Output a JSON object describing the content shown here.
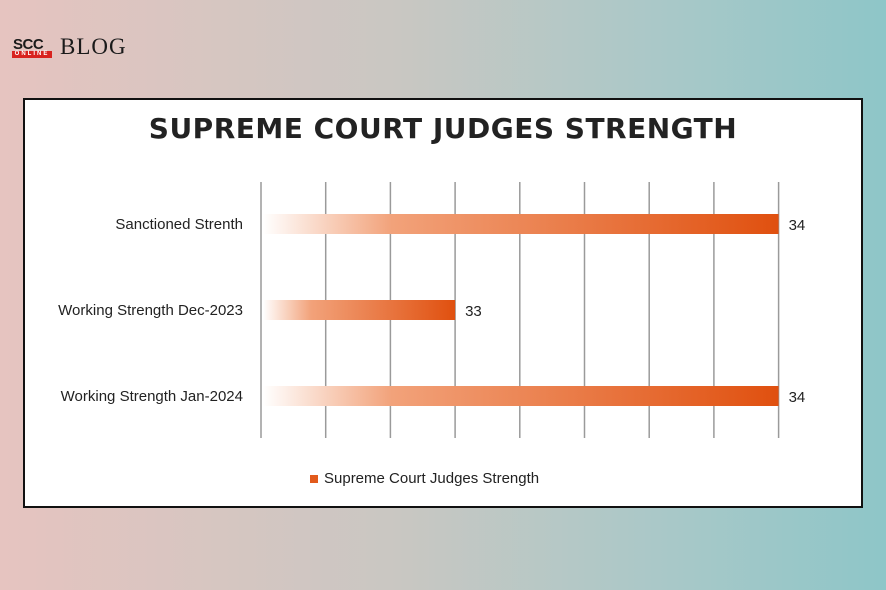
{
  "brand": {
    "mark": "SCC",
    "mark_sub": "ONLINE",
    "blog": "BLOG"
  },
  "chart_data": {
    "type": "bar",
    "orientation": "horizontal",
    "title": "SUPREME COURT JUDGES STRENGTH",
    "categories": [
      "Sanctioned Strenth",
      "Working Strength Dec-2023",
      "Working Strength Jan-2024"
    ],
    "series": [
      {
        "name": "Supreme Court Judges Strength",
        "values": [
          34,
          33,
          34
        ]
      }
    ],
    "data_labels": [
      "34",
      "33",
      "34"
    ],
    "grid": true,
    "legend": "bottom",
    "colors": {
      "bar": "#e0500f",
      "bar_fade": "#ffffff"
    }
  }
}
